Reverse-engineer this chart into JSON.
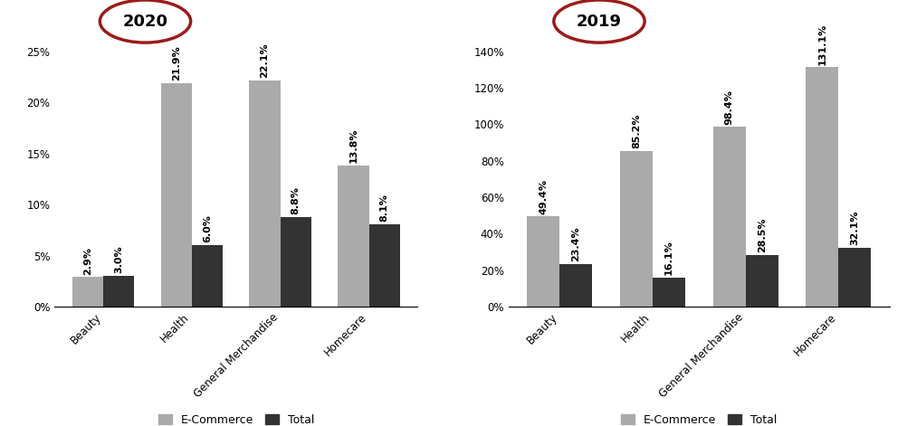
{
  "left_chart": {
    "year": "2020",
    "categories": [
      "Beauty",
      "Health",
      "General Merchandise",
      "Homecare"
    ],
    "ecommerce": [
      2.9,
      21.9,
      22.1,
      13.8
    ],
    "total": [
      3.0,
      6.0,
      8.8,
      8.1
    ],
    "ylim": [
      0,
      0.25
    ],
    "yticks": [
      0,
      0.05,
      0.1,
      0.15,
      0.2,
      0.25
    ],
    "ytick_labels": [
      "0%",
      "5%",
      "10%",
      "15%",
      "20%",
      "25%"
    ]
  },
  "right_chart": {
    "year": "2019",
    "categories": [
      "Beauty",
      "Health",
      "General Merchandise",
      "Homecare"
    ],
    "ecommerce": [
      49.4,
      85.2,
      98.4,
      131.1
    ],
    "total": [
      23.4,
      16.1,
      28.5,
      32.1
    ],
    "ylim": [
      0,
      1.4
    ],
    "yticks": [
      0,
      0.2,
      0.4,
      0.6,
      0.8,
      1.0,
      1.2,
      1.4
    ],
    "ytick_labels": [
      "0%",
      "20%",
      "40%",
      "60%",
      "80%",
      "100%",
      "120%",
      "140%"
    ]
  },
  "ecommerce_color": "#aaaaaa",
  "total_color": "#333333",
  "bar_width": 0.35,
  "circle_color": "#9b1b1b",
  "year_fontsize": 13,
  "tick_fontsize": 8.5,
  "annotation_fontsize": 8,
  "legend_fontsize": 9,
  "background_color": "#ffffff"
}
